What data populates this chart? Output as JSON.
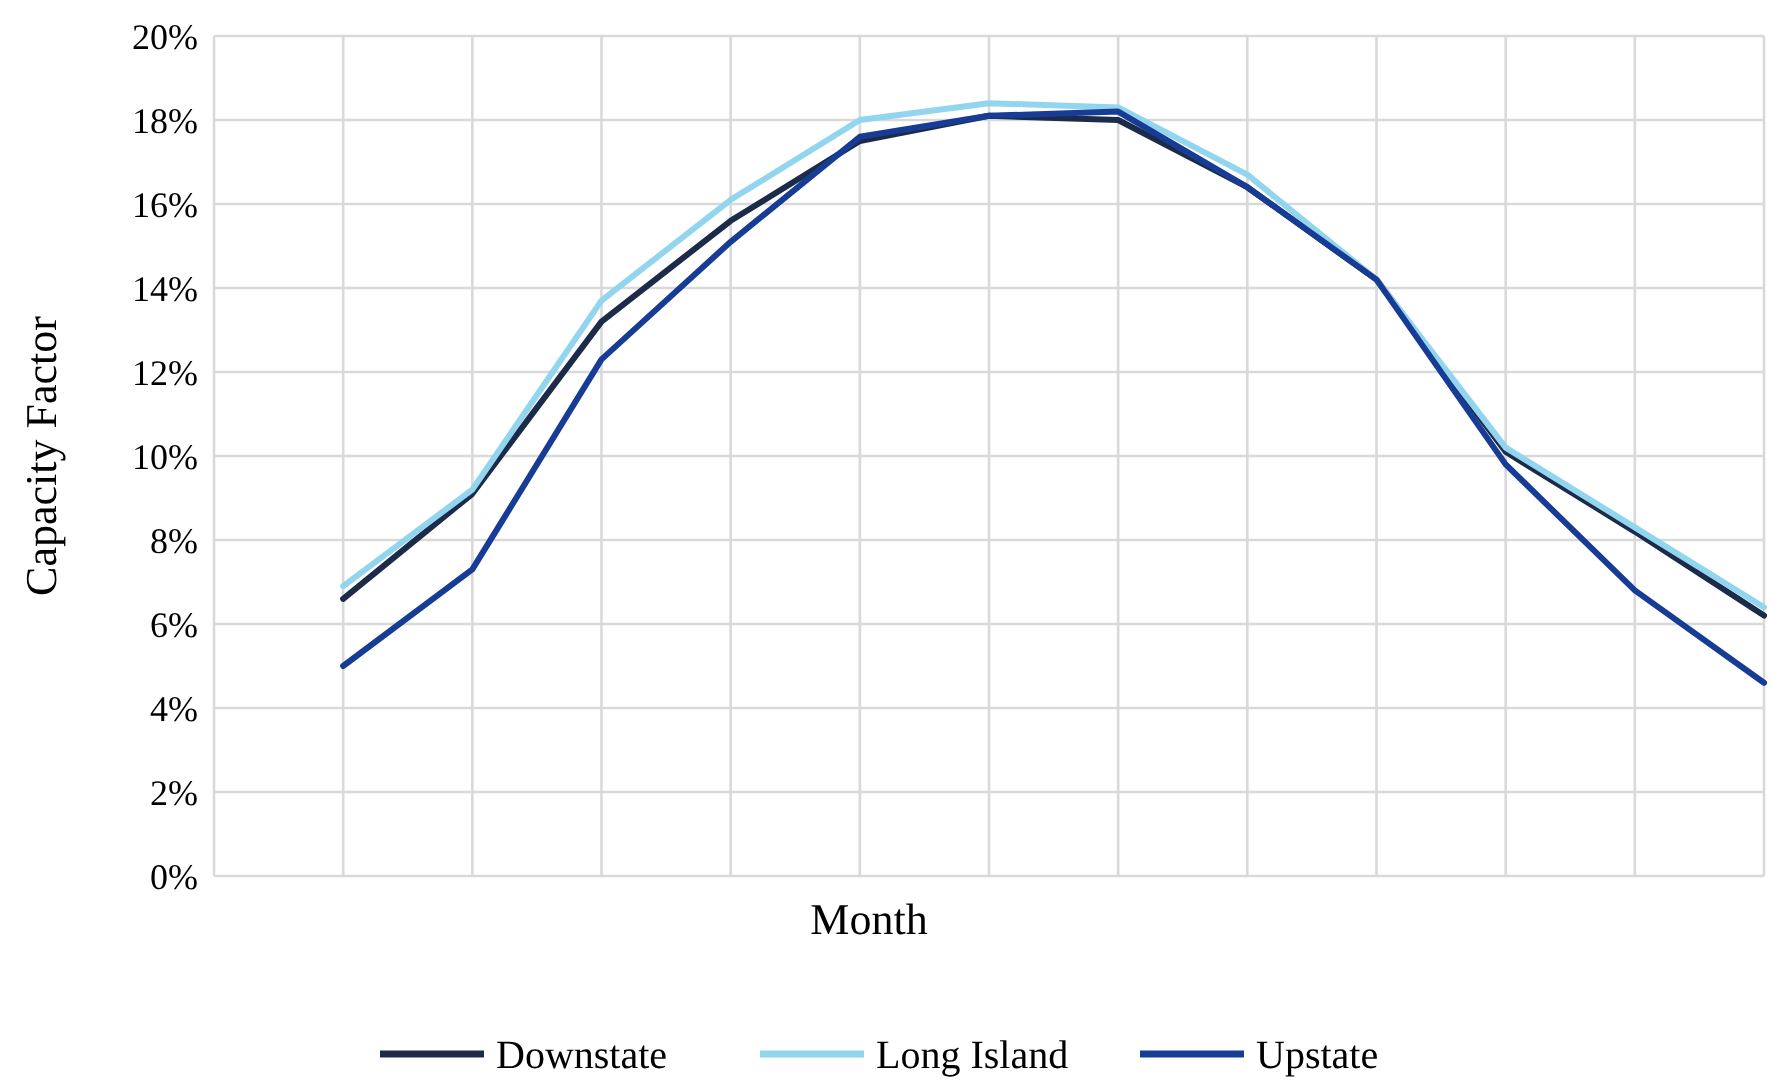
{
  "chart_data": {
    "type": "line",
    "xlabel": "Month",
    "ylabel": "Capacity Factor",
    "categories": [
      null,
      null,
      null,
      null,
      null,
      null,
      null,
      null,
      null,
      null,
      null,
      null
    ],
    "series": [
      {
        "name": "Downstate",
        "color": "#1c2b4a",
        "values": [
          6.6,
          9.1,
          13.2,
          15.6,
          17.5,
          18.1,
          18.0,
          16.4,
          14.2,
          10.1,
          8.2,
          6.2
        ]
      },
      {
        "name": "Long Island",
        "color": "#92d5ee",
        "values": [
          6.9,
          9.2,
          13.7,
          16.1,
          18.0,
          18.4,
          18.3,
          16.7,
          14.2,
          10.2,
          8.3,
          6.4
        ]
      },
      {
        "name": "Upstate",
        "color": "#173c95",
        "values": [
          5.0,
          7.3,
          12.3,
          15.1,
          17.6,
          18.1,
          18.2,
          16.4,
          14.2,
          9.8,
          6.8,
          4.6
        ]
      }
    ],
    "ylim": [
      0,
      20
    ],
    "yticks": [
      {
        "value": 0,
        "label": "0%"
      },
      {
        "value": 2,
        "label": "2%"
      },
      {
        "value": 4,
        "label": "4%"
      },
      {
        "value": 6,
        "label": "6%"
      },
      {
        "value": 8,
        "label": "8%"
      },
      {
        "value": 10,
        "label": "10%"
      },
      {
        "value": 12,
        "label": "12%"
      },
      {
        "value": 14,
        "label": "14%"
      },
      {
        "value": 16,
        "label": "16%"
      },
      {
        "value": 18,
        "label": "18%"
      },
      {
        "value": 20,
        "label": "20%"
      }
    ],
    "grid": true,
    "legend": "bottom",
    "tick_labels": "y",
    "marker": "none",
    "line_style": "solid"
  }
}
